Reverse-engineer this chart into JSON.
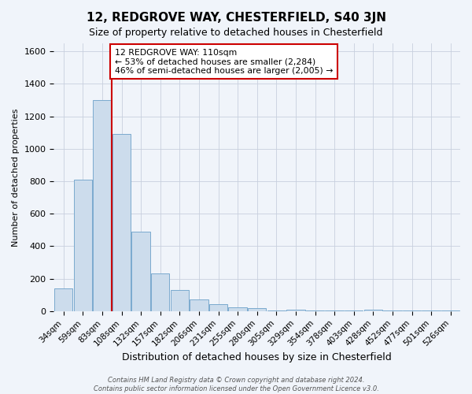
{
  "title": "12, REDGROVE WAY, CHESTERFIELD, S40 3JN",
  "subtitle": "Size of property relative to detached houses in Chesterfield",
  "xlabel": "Distribution of detached houses by size in Chesterfield",
  "ylabel": "Number of detached properties",
  "bar_labels": [
    "34sqm",
    "59sqm",
    "83sqm",
    "108sqm",
    "132sqm",
    "157sqm",
    "182sqm",
    "206sqm",
    "231sqm",
    "255sqm",
    "280sqm",
    "305sqm",
    "329sqm",
    "354sqm",
    "378sqm",
    "403sqm",
    "428sqm",
    "452sqm",
    "477sqm",
    "501sqm",
    "526sqm"
  ],
  "bar_heights": [
    140,
    810,
    1300,
    1090,
    490,
    230,
    130,
    70,
    45,
    25,
    20,
    5,
    10,
    3,
    2,
    2,
    10,
    2,
    2,
    2,
    5
  ],
  "bar_color": "#ccdcec",
  "bar_edgecolor": "#7aaace",
  "vline_x_index": 3,
  "vline_color": "#cc0000",
  "ylim": [
    0,
    1650
  ],
  "yticks": [
    0,
    200,
    400,
    600,
    800,
    1000,
    1200,
    1400,
    1600
  ],
  "annotation_title": "12 REDGROVE WAY: 110sqm",
  "annotation_line1": "← 53% of detached houses are smaller (2,284)",
  "annotation_line2": "46% of semi-detached houses are larger (2,005) →",
  "annotation_box_facecolor": "#ffffff",
  "annotation_box_edgecolor": "#cc0000",
  "footer_line1": "Contains HM Land Registry data © Crown copyright and database right 2024.",
  "footer_line2": "Contains public sector information licensed under the Open Government Licence v3.0.",
  "bg_color": "#f0f4fa",
  "grid_color": "#c8d0de",
  "title_fontsize": 11,
  "subtitle_fontsize": 9,
  "xlabel_fontsize": 9,
  "ylabel_fontsize": 8
}
